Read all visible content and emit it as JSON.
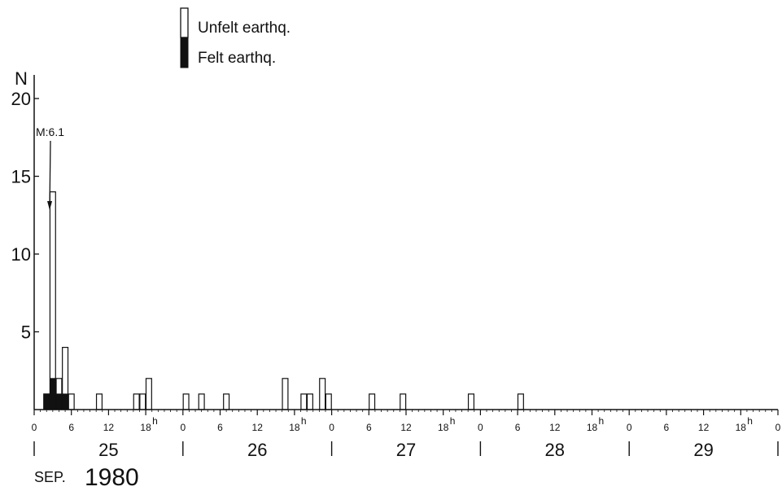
{
  "chart_data": {
    "type": "bar",
    "ylabel": "N",
    "ylim": [
      0,
      20
    ],
    "yticks": [
      5,
      10,
      15,
      20
    ],
    "ytick_labels": [
      "5",
      "10",
      "15",
      "20"
    ],
    "x_unit": "hours",
    "xlim": [
      0,
      120
    ],
    "hour_ticks": [
      {
        "x": 0,
        "label": "0"
      },
      {
        "x": 6,
        "label": "6"
      },
      {
        "x": 12,
        "label": "12"
      },
      {
        "x": 18,
        "label": "18",
        "sup": "h"
      },
      {
        "x": 24,
        "label": "0"
      },
      {
        "x": 30,
        "label": "6"
      },
      {
        "x": 36,
        "label": "12"
      },
      {
        "x": 42,
        "label": "18",
        "sup": "h"
      },
      {
        "x": 48,
        "label": "0"
      },
      {
        "x": 54,
        "label": "6"
      },
      {
        "x": 60,
        "label": "12"
      },
      {
        "x": 66,
        "label": "18",
        "sup": "h"
      },
      {
        "x": 72,
        "label": "0"
      },
      {
        "x": 78,
        "label": "6"
      },
      {
        "x": 84,
        "label": "12"
      },
      {
        "x": 90,
        "label": "18",
        "sup": "h"
      },
      {
        "x": 96,
        "label": "0"
      },
      {
        "x": 102,
        "label": "6"
      },
      {
        "x": 108,
        "label": "12"
      },
      {
        "x": 114,
        "label": "18",
        "sup": "h"
      },
      {
        "x": 120,
        "label": "0"
      }
    ],
    "days": [
      {
        "label": "25",
        "start": 0,
        "end": 24
      },
      {
        "label": "26",
        "start": 24,
        "end": 48
      },
      {
        "label": "27",
        "start": 48,
        "end": 72
      },
      {
        "label": "28",
        "start": 72,
        "end": 96
      },
      {
        "label": "29",
        "start": 96,
        "end": 120
      }
    ],
    "month_label": "SEP.",
    "year_label": "1980",
    "series": [
      {
        "name": "Unfelt earthq.",
        "color": "#ffffff",
        "bars": [
          {
            "x": 2,
            "value": 1
          },
          {
            "x": 3,
            "value": 14
          },
          {
            "x": 4,
            "value": 2
          },
          {
            "x": 5,
            "value": 4
          },
          {
            "x": 6,
            "value": 1
          },
          {
            "x": 10.5,
            "value": 1
          },
          {
            "x": 16.5,
            "value": 1
          },
          {
            "x": 17.5,
            "value": 1
          },
          {
            "x": 18.5,
            "value": 2
          },
          {
            "x": 24.5,
            "value": 1
          },
          {
            "x": 27,
            "value": 1
          },
          {
            "x": 31,
            "value": 1
          },
          {
            "x": 40.5,
            "value": 2
          },
          {
            "x": 43.5,
            "value": 1
          },
          {
            "x": 44.5,
            "value": 1
          },
          {
            "x": 46.5,
            "value": 2
          },
          {
            "x": 47.5,
            "value": 1
          },
          {
            "x": 54.5,
            "value": 1
          },
          {
            "x": 59.5,
            "value": 1
          },
          {
            "x": 70.5,
            "value": 1
          },
          {
            "x": 78.5,
            "value": 1
          }
        ]
      },
      {
        "name": "Felt earthq.",
        "color": "#111111",
        "bars": [
          {
            "x": 2,
            "value": 1
          },
          {
            "x": 3,
            "value": 2
          },
          {
            "x": 4,
            "value": 1
          },
          {
            "x": 5,
            "value": 1
          }
        ]
      }
    ],
    "annotation": {
      "text": "M:6.1",
      "x": 2.5
    },
    "legend_placement": "top-center",
    "grid": false
  }
}
